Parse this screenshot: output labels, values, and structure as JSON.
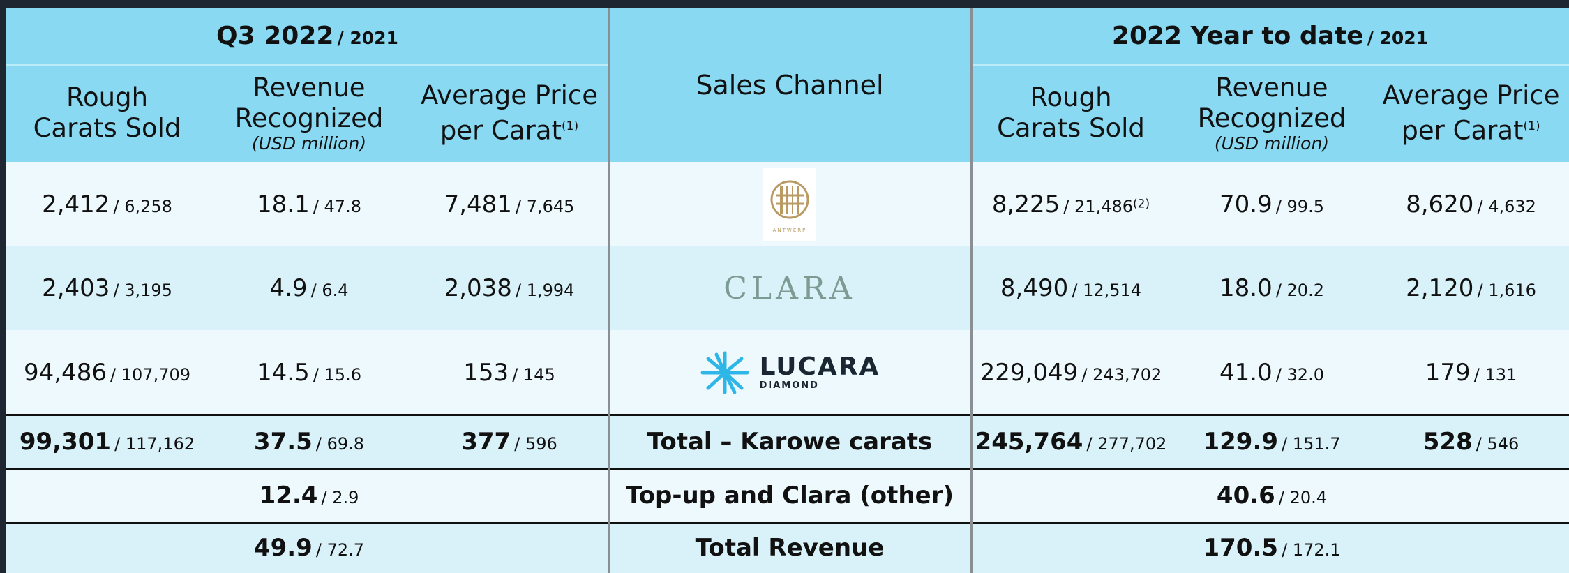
{
  "table": {
    "groups": [
      {
        "title": "Q3 2022",
        "suffix": "/ 2021"
      },
      {
        "title": "2022 Year to date",
        "suffix": "/ 2021"
      }
    ],
    "channel_header": "Sales Channel",
    "columns": [
      {
        "lines": [
          "Rough",
          "Carats Sold"
        ]
      },
      {
        "lines": [
          "Revenue",
          "Recognized"
        ],
        "note": "(USD million)"
      },
      {
        "lines": [
          "Average Price",
          "per Carat"
        ],
        "sup": "(1)"
      }
    ],
    "rows": [
      {
        "channel": {
          "logo_text": "ANTWERP"
        },
        "q3": [
          {
            "value": "2,412",
            "prior": "/ 6,258"
          },
          {
            "value": "18.1",
            "prior": "/ 47.8"
          },
          {
            "value": "7,481",
            "prior": "/ 7,645"
          }
        ],
        "ytd": [
          {
            "value": "8,225",
            "prior": "/ 21,486",
            "sup": "(2)"
          },
          {
            "value": "70.9",
            "prior": "/ 99.5"
          },
          {
            "value": "8,620",
            "prior": "/ 4,632"
          }
        ]
      },
      {
        "channel": {
          "logo_text": "CLARA"
        },
        "q3": [
          {
            "value": "2,403",
            "prior": "/ 3,195"
          },
          {
            "value": "4.9",
            "prior": "/ 6.4"
          },
          {
            "value": "2,038",
            "prior": "/ 1,994"
          }
        ],
        "ytd": [
          {
            "value": "8,490",
            "prior": "/ 12,514"
          },
          {
            "value": "18.0",
            "prior": "/ 20.2"
          },
          {
            "value": "2,120",
            "prior": "/ 1,616"
          }
        ]
      },
      {
        "channel": {
          "logo_text": "LUCARA",
          "logo_subtext": "DIAMOND"
        },
        "q3": [
          {
            "value": "94,486",
            "prior": "/ 107,709"
          },
          {
            "value": "14.5",
            "prior": "/ 15.6"
          },
          {
            "value": "153",
            "prior": "/ 145"
          }
        ],
        "ytd": [
          {
            "value": "229,049",
            "prior": "/ 243,702"
          },
          {
            "value": "41.0",
            "prior": "/ 32.0"
          },
          {
            "value": "179",
            "prior": "/ 131"
          }
        ]
      }
    ],
    "totals": [
      {
        "label": "Total – Karowe carats",
        "q3": [
          {
            "value": "99,301",
            "prior": "/ 117,162"
          },
          {
            "value": "37.5",
            "prior": "/ 69.8"
          },
          {
            "value": "377",
            "prior": "/ 596"
          }
        ],
        "ytd": [
          {
            "value": "245,764",
            "prior": "/ 277,702"
          },
          {
            "value": "129.9",
            "prior": "/ 151.7"
          },
          {
            "value": "528",
            "prior": "/ 546"
          }
        ]
      },
      {
        "label": "Top-up and Clara (other)",
        "q3_revenue": {
          "value": "12.4",
          "prior": "/ 2.9"
        },
        "ytd_revenue": {
          "value": "40.6",
          "prior": "/ 20.4"
        }
      },
      {
        "label": "Total Revenue",
        "q3_revenue": {
          "value": "49.9",
          "prior": "/ 72.7"
        },
        "ytd_revenue": {
          "value": "170.5",
          "prior": "/ 172.1"
        }
      }
    ]
  }
}
